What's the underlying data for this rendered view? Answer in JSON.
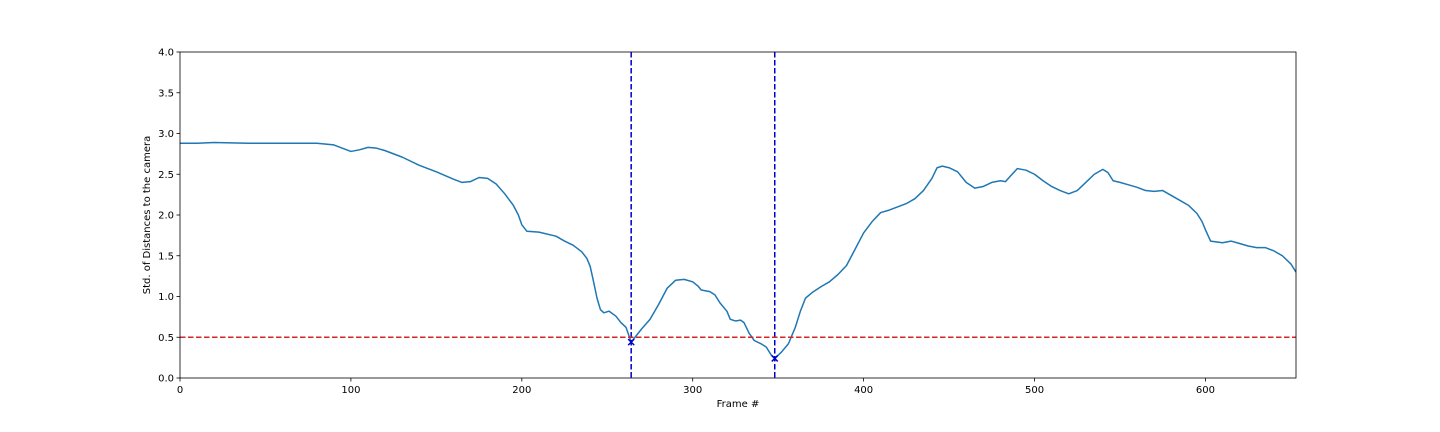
{
  "chart_data": {
    "type": "line",
    "xlabel": "Frame #",
    "ylabel": "Std. of Distances to the camera",
    "xlim": [
      0,
      653
    ],
    "ylim": [
      0,
      4.0
    ],
    "xticks": [
      0,
      100,
      200,
      300,
      400,
      500,
      600
    ],
    "yticks": [
      "0.0",
      "0.5",
      "1.0",
      "1.5",
      "2.0",
      "2.5",
      "3.0",
      "3.5",
      "4.0"
    ],
    "grid": false,
    "series": [
      {
        "color": "#1f77b4",
        "points": [
          [
            0,
            2.88
          ],
          [
            10,
            2.88
          ],
          [
            20,
            2.89
          ],
          [
            40,
            2.88
          ],
          [
            60,
            2.88
          ],
          [
            80,
            2.88
          ],
          [
            90,
            2.86
          ],
          [
            95,
            2.82
          ],
          [
            100,
            2.78
          ],
          [
            105,
            2.8
          ],
          [
            110,
            2.83
          ],
          [
            115,
            2.82
          ],
          [
            120,
            2.79
          ],
          [
            130,
            2.71
          ],
          [
            140,
            2.61
          ],
          [
            150,
            2.53
          ],
          [
            160,
            2.44
          ],
          [
            165,
            2.4
          ],
          [
            170,
            2.41
          ],
          [
            175,
            2.46
          ],
          [
            180,
            2.45
          ],
          [
            185,
            2.38
          ],
          [
            190,
            2.26
          ],
          [
            195,
            2.12
          ],
          [
            198,
            2.0
          ],
          [
            200,
            1.88
          ],
          [
            203,
            1.8
          ],
          [
            210,
            1.79
          ],
          [
            220,
            1.74
          ],
          [
            225,
            1.68
          ],
          [
            230,
            1.63
          ],
          [
            235,
            1.55
          ],
          [
            238,
            1.47
          ],
          [
            240,
            1.37
          ],
          [
            242,
            1.18
          ],
          [
            244,
            0.98
          ],
          [
            246,
            0.84
          ],
          [
            248,
            0.8
          ],
          [
            251,
            0.82
          ],
          [
            255,
            0.76
          ],
          [
            258,
            0.68
          ],
          [
            261,
            0.62
          ],
          [
            264,
            0.44
          ],
          [
            267,
            0.52
          ],
          [
            270,
            0.6
          ],
          [
            275,
            0.72
          ],
          [
            280,
            0.9
          ],
          [
            285,
            1.1
          ],
          [
            290,
            1.2
          ],
          [
            295,
            1.21
          ],
          [
            300,
            1.18
          ],
          [
            303,
            1.13
          ],
          [
            305,
            1.08
          ],
          [
            310,
            1.06
          ],
          [
            313,
            1.02
          ],
          [
            316,
            0.92
          ],
          [
            320,
            0.82
          ],
          [
            322,
            0.72
          ],
          [
            325,
            0.7
          ],
          [
            328,
            0.71
          ],
          [
            330,
            0.68
          ],
          [
            333,
            0.55
          ],
          [
            336,
            0.46
          ],
          [
            340,
            0.42
          ],
          [
            343,
            0.38
          ],
          [
            346,
            0.28
          ],
          [
            348,
            0.24
          ],
          [
            352,
            0.32
          ],
          [
            356,
            0.42
          ],
          [
            360,
            0.62
          ],
          [
            363,
            0.82
          ],
          [
            366,
            0.98
          ],
          [
            370,
            1.05
          ],
          [
            375,
            1.12
          ],
          [
            380,
            1.18
          ],
          [
            385,
            1.27
          ],
          [
            390,
            1.38
          ],
          [
            393,
            1.5
          ],
          [
            396,
            1.62
          ],
          [
            400,
            1.78
          ],
          [
            405,
            1.92
          ],
          [
            410,
            2.03
          ],
          [
            415,
            2.06
          ],
          [
            420,
            2.1
          ],
          [
            425,
            2.14
          ],
          [
            430,
            2.2
          ],
          [
            435,
            2.3
          ],
          [
            440,
            2.45
          ],
          [
            443,
            2.58
          ],
          [
            446,
            2.6
          ],
          [
            450,
            2.58
          ],
          [
            455,
            2.53
          ],
          [
            460,
            2.4
          ],
          [
            465,
            2.33
          ],
          [
            470,
            2.35
          ],
          [
            475,
            2.4
          ],
          [
            480,
            2.42
          ],
          [
            483,
            2.41
          ],
          [
            486,
            2.48
          ],
          [
            490,
            2.57
          ],
          [
            495,
            2.55
          ],
          [
            500,
            2.5
          ],
          [
            505,
            2.42
          ],
          [
            510,
            2.35
          ],
          [
            515,
            2.3
          ],
          [
            520,
            2.26
          ],
          [
            525,
            2.3
          ],
          [
            530,
            2.4
          ],
          [
            535,
            2.5
          ],
          [
            540,
            2.56
          ],
          [
            543,
            2.52
          ],
          [
            546,
            2.42
          ],
          [
            550,
            2.4
          ],
          [
            555,
            2.37
          ],
          [
            560,
            2.34
          ],
          [
            565,
            2.3
          ],
          [
            570,
            2.29
          ],
          [
            575,
            2.3
          ],
          [
            580,
            2.24
          ],
          [
            585,
            2.18
          ],
          [
            590,
            2.12
          ],
          [
            595,
            2.02
          ],
          [
            598,
            1.92
          ],
          [
            600,
            1.82
          ],
          [
            603,
            1.68
          ],
          [
            610,
            1.66
          ],
          [
            615,
            1.68
          ],
          [
            620,
            1.65
          ],
          [
            625,
            1.62
          ],
          [
            630,
            1.6
          ],
          [
            635,
            1.6
          ],
          [
            640,
            1.56
          ],
          [
            645,
            1.5
          ],
          [
            650,
            1.4
          ],
          [
            653,
            1.3
          ]
        ]
      }
    ],
    "threshold": {
      "y": 0.5,
      "color": "#d62728",
      "style": "dashed"
    },
    "vlines": [
      {
        "x": 264,
        "color": "#0000cc",
        "style": "dashed"
      },
      {
        "x": 348,
        "color": "#0000cc",
        "style": "dashed"
      }
    ],
    "markers": [
      {
        "x": 264,
        "y": 0.44,
        "symbol": "x",
        "color": "#0000cc"
      },
      {
        "x": 348,
        "y": 0.24,
        "symbol": "x",
        "color": "#0000cc"
      }
    ]
  }
}
